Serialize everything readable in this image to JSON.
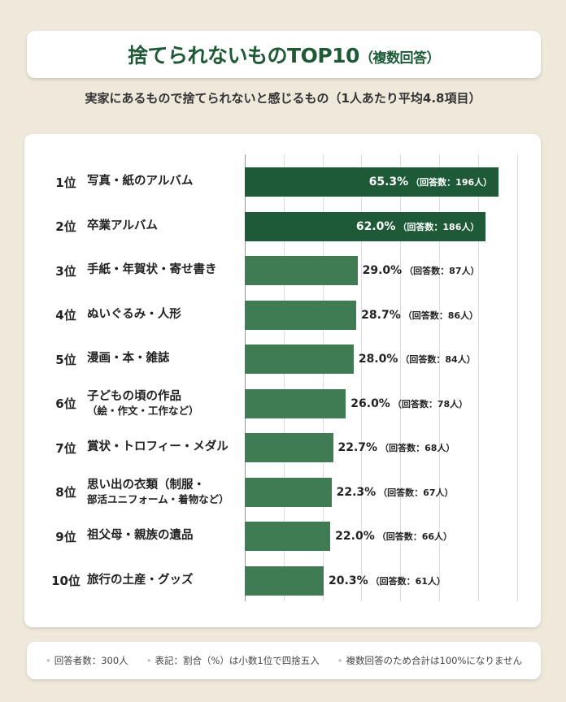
{
  "header": {
    "title": "捨てられないものTOP10",
    "title_suffix": "（複数回答）",
    "subtitle": "実家にあるもので捨てられないと感じるもの（1人あたり平均4.8項目）"
  },
  "colors": {
    "top": "#1e5a37",
    "rest": "#3f7b53",
    "title": "#1d5a35"
  },
  "chart_data": {
    "type": "bar",
    "orientation": "horizontal",
    "xlim": [
      0,
      70
    ],
    "grid": true,
    "categories": [
      {
        "rank": "1位",
        "label": "写真・紙のアルバム",
        "label2": ""
      },
      {
        "rank": "2位",
        "label": "卒業アルバム",
        "label2": ""
      },
      {
        "rank": "3位",
        "label": "手紙・年賀状・寄せ書き",
        "label2": ""
      },
      {
        "rank": "4位",
        "label": "ぬいぐるみ・人形",
        "label2": ""
      },
      {
        "rank": "5位",
        "label": "漫画・本・雑誌",
        "label2": ""
      },
      {
        "rank": "6位",
        "label": "子どもの頃の作品",
        "label2": "（絵・作文・工作など）"
      },
      {
        "rank": "7位",
        "label": "賞状・トロフィー・メダル",
        "label2": ""
      },
      {
        "rank": "8位",
        "label": "思い出の衣類（制服・",
        "label2": "部活ユニフォーム・着物など）"
      },
      {
        "rank": "9位",
        "label": "祖父母・親族の遺品",
        "label2": ""
      },
      {
        "rank": "10位",
        "label": "旅行の土産・グッズ",
        "label2": ""
      }
    ],
    "values": [
      65.3,
      62.0,
      29.0,
      28.7,
      28.0,
      26.0,
      22.7,
      22.3,
      22.0,
      20.3
    ],
    "value_labels": [
      "65.3%",
      "62.0%",
      "29.0%",
      "28.7%",
      "28.0%",
      "26.0%",
      "22.7%",
      "22.3%",
      "22.0%",
      "20.3%"
    ],
    "count_labels": [
      "（回答数：196人）",
      "（回答数：186人）",
      "（回答数：87人）",
      "（回答数：86人）",
      "（回答数：84人）",
      "（回答数：78人）",
      "（回答数：68人）",
      "（回答数：67人）",
      "（回答数：66人）",
      "（回答数：61人）"
    ]
  },
  "footer": {
    "notes": [
      "回答者数：300人",
      "表記：割合（%）は小数1位で四捨五入",
      "複数回答のため合計は100%になりません"
    ]
  }
}
